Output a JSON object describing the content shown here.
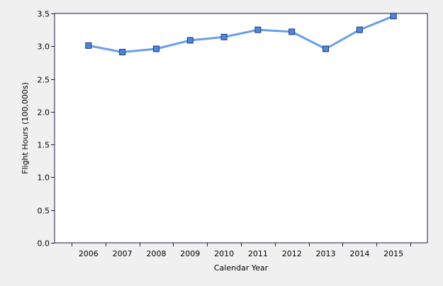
{
  "chart_data": {
    "type": "line",
    "title": "",
    "xlabel": "Calendar Year",
    "ylabel": "Flight Hours (100,000s)",
    "categories": [
      "2006",
      "2007",
      "2008",
      "2009",
      "2010",
      "2011",
      "2012",
      "2013",
      "2014",
      "2015"
    ],
    "series": [
      {
        "values": [
          3.01,
          2.91,
          2.96,
          3.09,
          3.14,
          3.25,
          3.22,
          2.96,
          3.25,
          3.46
        ]
      }
    ],
    "ylim": [
      0,
      3.5
    ],
    "yticks": [
      0.0,
      0.5,
      1.0,
      1.5,
      2.0,
      2.5,
      3.0,
      3.5
    ],
    "ytick_labels": [
      "0.0",
      "0.5",
      "1.0",
      "1.5",
      "2.0",
      "2.5",
      "3.0",
      "3.5"
    ],
    "grid": false,
    "legend": "none",
    "colors": {
      "line": "#6a9fe6",
      "marker_fill": "#4f86dc",
      "marker_stroke": "#1d3b73",
      "plot_background": "#ffffff",
      "page_background": "#f0f0f0",
      "axis": "#1a1a4a"
    }
  }
}
